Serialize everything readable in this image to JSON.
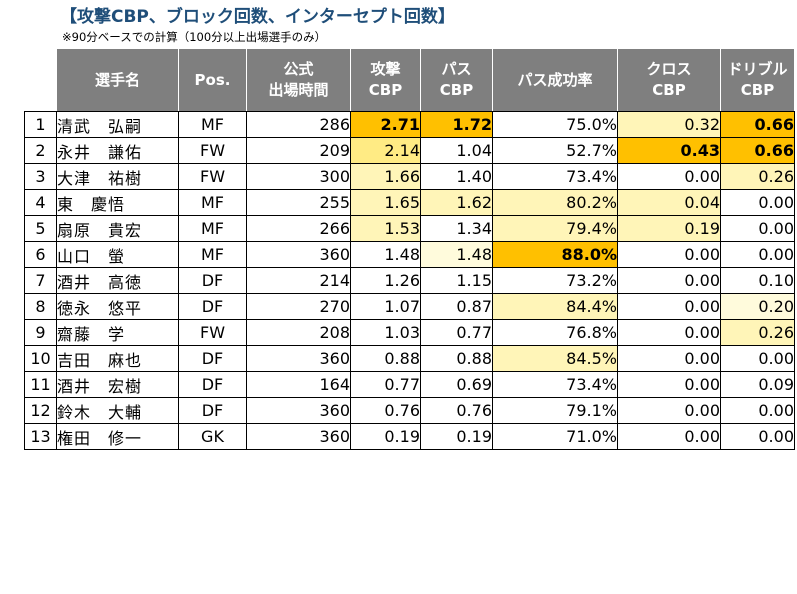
{
  "title": "【攻撃CBP、ブロック回数、インターセプト回数】",
  "note": "※90分ベースでの計算（100分以上出場選手のみ）",
  "headers": {
    "name": "選手名",
    "pos": "Pos.",
    "minutes_1": "公式",
    "minutes_2": "出場時間",
    "attack_1": "攻撃",
    "attack_2": "CBP",
    "pass_1": "パス",
    "pass_2": "CBP",
    "pass_rate": "パス成功率",
    "cross_1": "クロス",
    "cross_2": "CBP",
    "dribble_1": "ドリブル",
    "dribble_2": "CBP"
  },
  "rows": [
    {
      "no": "1",
      "name": "清武　弘嗣",
      "pos": "MF",
      "minutes": "286",
      "attack": "2.71",
      "pass": "1.72",
      "rate": "75.0%",
      "cross": "0.32",
      "dribble": "0.66"
    },
    {
      "no": "2",
      "name": "永井　謙佑",
      "pos": "FW",
      "minutes": "209",
      "attack": "2.14",
      "pass": "1.04",
      "rate": "52.7%",
      "cross": "0.43",
      "dribble": "0.66"
    },
    {
      "no": "3",
      "name": "大津　祐樹",
      "pos": "FW",
      "minutes": "300",
      "attack": "1.66",
      "pass": "1.40",
      "rate": "73.4%",
      "cross": "0.00",
      "dribble": "0.26"
    },
    {
      "no": "4",
      "name": "東　慶悟",
      "pos": "MF",
      "minutes": "255",
      "attack": "1.65",
      "pass": "1.62",
      "rate": "80.2%",
      "cross": "0.04",
      "dribble": "0.00"
    },
    {
      "no": "5",
      "name": "扇原　貴宏",
      "pos": "MF",
      "minutes": "266",
      "attack": "1.53",
      "pass": "1.34",
      "rate": "79.4%",
      "cross": "0.19",
      "dribble": "0.00"
    },
    {
      "no": "6",
      "name": "山口　螢",
      "pos": "MF",
      "minutes": "360",
      "attack": "1.48",
      "pass": "1.48",
      "rate": "88.0%",
      "cross": "0.00",
      "dribble": "0.00"
    },
    {
      "no": "7",
      "name": "酒井　高徳",
      "pos": "DF",
      "minutes": "214",
      "attack": "1.26",
      "pass": "1.15",
      "rate": "73.2%",
      "cross": "0.00",
      "dribble": "0.10"
    },
    {
      "no": "8",
      "name": "徳永　悠平",
      "pos": "DF",
      "minutes": "270",
      "attack": "1.07",
      "pass": "0.87",
      "rate": "84.4%",
      "cross": "0.00",
      "dribble": "0.20"
    },
    {
      "no": "9",
      "name": "齋藤　学",
      "pos": "FW",
      "minutes": "208",
      "attack": "1.03",
      "pass": "0.77",
      "rate": "76.8%",
      "cross": "0.00",
      "dribble": "0.26"
    },
    {
      "no": "10",
      "name": "吉田　麻也",
      "pos": "DF",
      "minutes": "360",
      "attack": "0.88",
      "pass": "0.88",
      "rate": "84.5%",
      "cross": "0.00",
      "dribble": "0.00"
    },
    {
      "no": "11",
      "name": "酒井　宏樹",
      "pos": "DF",
      "minutes": "164",
      "attack": "0.77",
      "pass": "0.69",
      "rate": "73.4%",
      "cross": "0.00",
      "dribble": "0.09"
    },
    {
      "no": "12",
      "name": "鈴木　大輔",
      "pos": "DF",
      "minutes": "360",
      "attack": "0.76",
      "pass": "0.76",
      "rate": "79.1%",
      "cross": "0.00",
      "dribble": "0.00"
    },
    {
      "no": "13",
      "name": "権田　修一",
      "pos": "GK",
      "minutes": "360",
      "attack": "0.19",
      "pass": "0.19",
      "rate": "71.0%",
      "cross": "0.00",
      "dribble": "0.00"
    }
  ]
}
